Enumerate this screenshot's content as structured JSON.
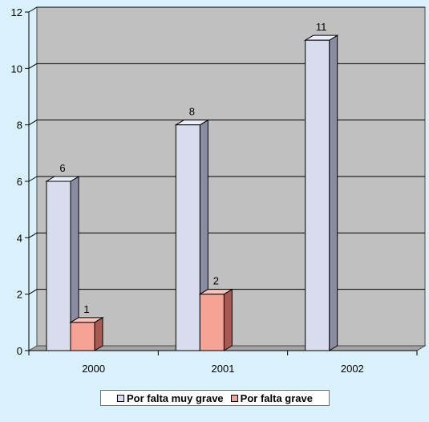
{
  "chart_data": {
    "type": "bar",
    "categories": [
      "2000",
      "2001",
      "2002"
    ],
    "series": [
      {
        "name": "Por falta muy grave",
        "values": [
          6,
          8,
          11
        ],
        "color": "#d8dced",
        "side_color": "#8a8ca2",
        "top_color": "#eceef8"
      },
      {
        "name": "Por falta grave",
        "values": [
          1,
          2,
          0
        ],
        "color": "#f5a396",
        "side_color": "#a85a52",
        "top_color": "#f9c4ba"
      }
    ],
    "ylim": [
      0,
      12
    ],
    "yticks": [
      0,
      2,
      4,
      6,
      8,
      10,
      12
    ],
    "grid": true,
    "legend_position": "bottom",
    "plot_background": "#c0c0c0",
    "page_background": "#d9f1fb"
  }
}
